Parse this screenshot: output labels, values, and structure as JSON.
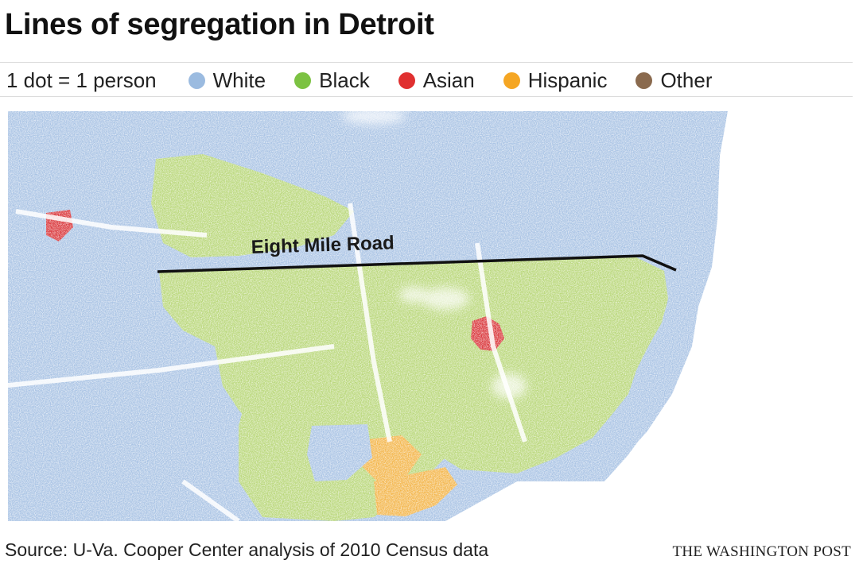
{
  "title": "Lines of segregation in Detroit",
  "legend": {
    "scale": "1 dot = 1 person",
    "items": [
      {
        "label": "White",
        "color": "#9bbbe0"
      },
      {
        "label": "Black",
        "color": "#7cc242"
      },
      {
        "label": "Asian",
        "color": "#e03030"
      },
      {
        "label": "Hispanic",
        "color": "#f5a623"
      },
      {
        "label": "Other",
        "color": "#8a6a4e"
      }
    ]
  },
  "map": {
    "road_label": "Eight Mile Road",
    "colors": {
      "white": "#a9c3e4",
      "black": "#b9d77a",
      "asian": "#d9363a",
      "hispanic": "#f3b54a",
      "other": "#8a6a4e",
      "road": "#111111"
    }
  },
  "source": "Source: U-Va. Cooper Center analysis of 2010 Census data",
  "credit": "THE WASHINGTON POST"
}
